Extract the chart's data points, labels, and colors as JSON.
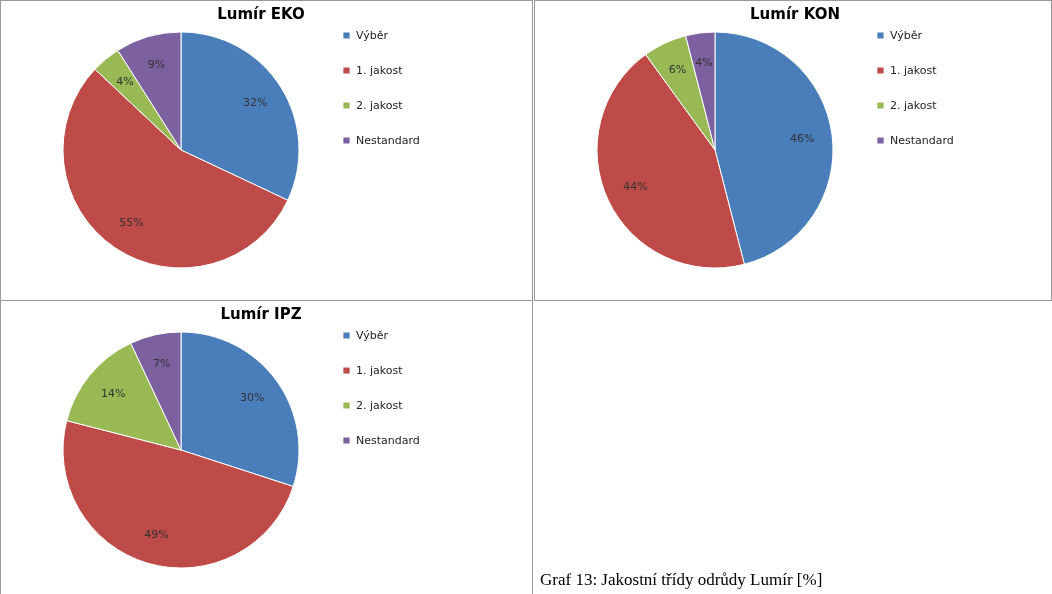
{
  "chart_data": [
    {
      "type": "pie",
      "title": "Lumír EKO",
      "categories": [
        "Výběr",
        "1. jakost",
        "2. jakost",
        "Nestandard"
      ],
      "values": [
        32,
        55,
        4,
        9
      ],
      "value_labels": [
        "32%",
        "55%",
        "4%",
        "9%"
      ],
      "colors": [
        "#4a7ebb",
        "#be4b48",
        "#98b954",
        "#7d60a0"
      ],
      "legend": "right"
    },
    {
      "type": "pie",
      "title": "Lumír KON",
      "categories": [
        "Výběr",
        "1. jakost",
        "2. jakost",
        "Nestandard"
      ],
      "values": [
        46,
        44,
        6,
        4
      ],
      "value_labels": [
        "46%",
        "44%",
        "6%",
        "4%"
      ],
      "colors": [
        "#4a7ebb",
        "#be4b48",
        "#98b954",
        "#7d60a0"
      ],
      "legend": "right"
    },
    {
      "type": "pie",
      "title": "Lumír IPZ",
      "categories": [
        "Výběr",
        "1. jakost",
        "2. jakost",
        "Nestandard"
      ],
      "values": [
        30,
        49,
        14,
        7
      ],
      "value_labels": [
        "30%",
        "49%",
        "14%",
        "7%"
      ],
      "colors": [
        "#4a7ebb",
        "#be4b48",
        "#98b954",
        "#7d60a0"
      ],
      "legend": "right",
      "annotations": [
        "Graf 13: Jakostní třídy odrůdy Lumír [%]"
      ]
    }
  ]
}
